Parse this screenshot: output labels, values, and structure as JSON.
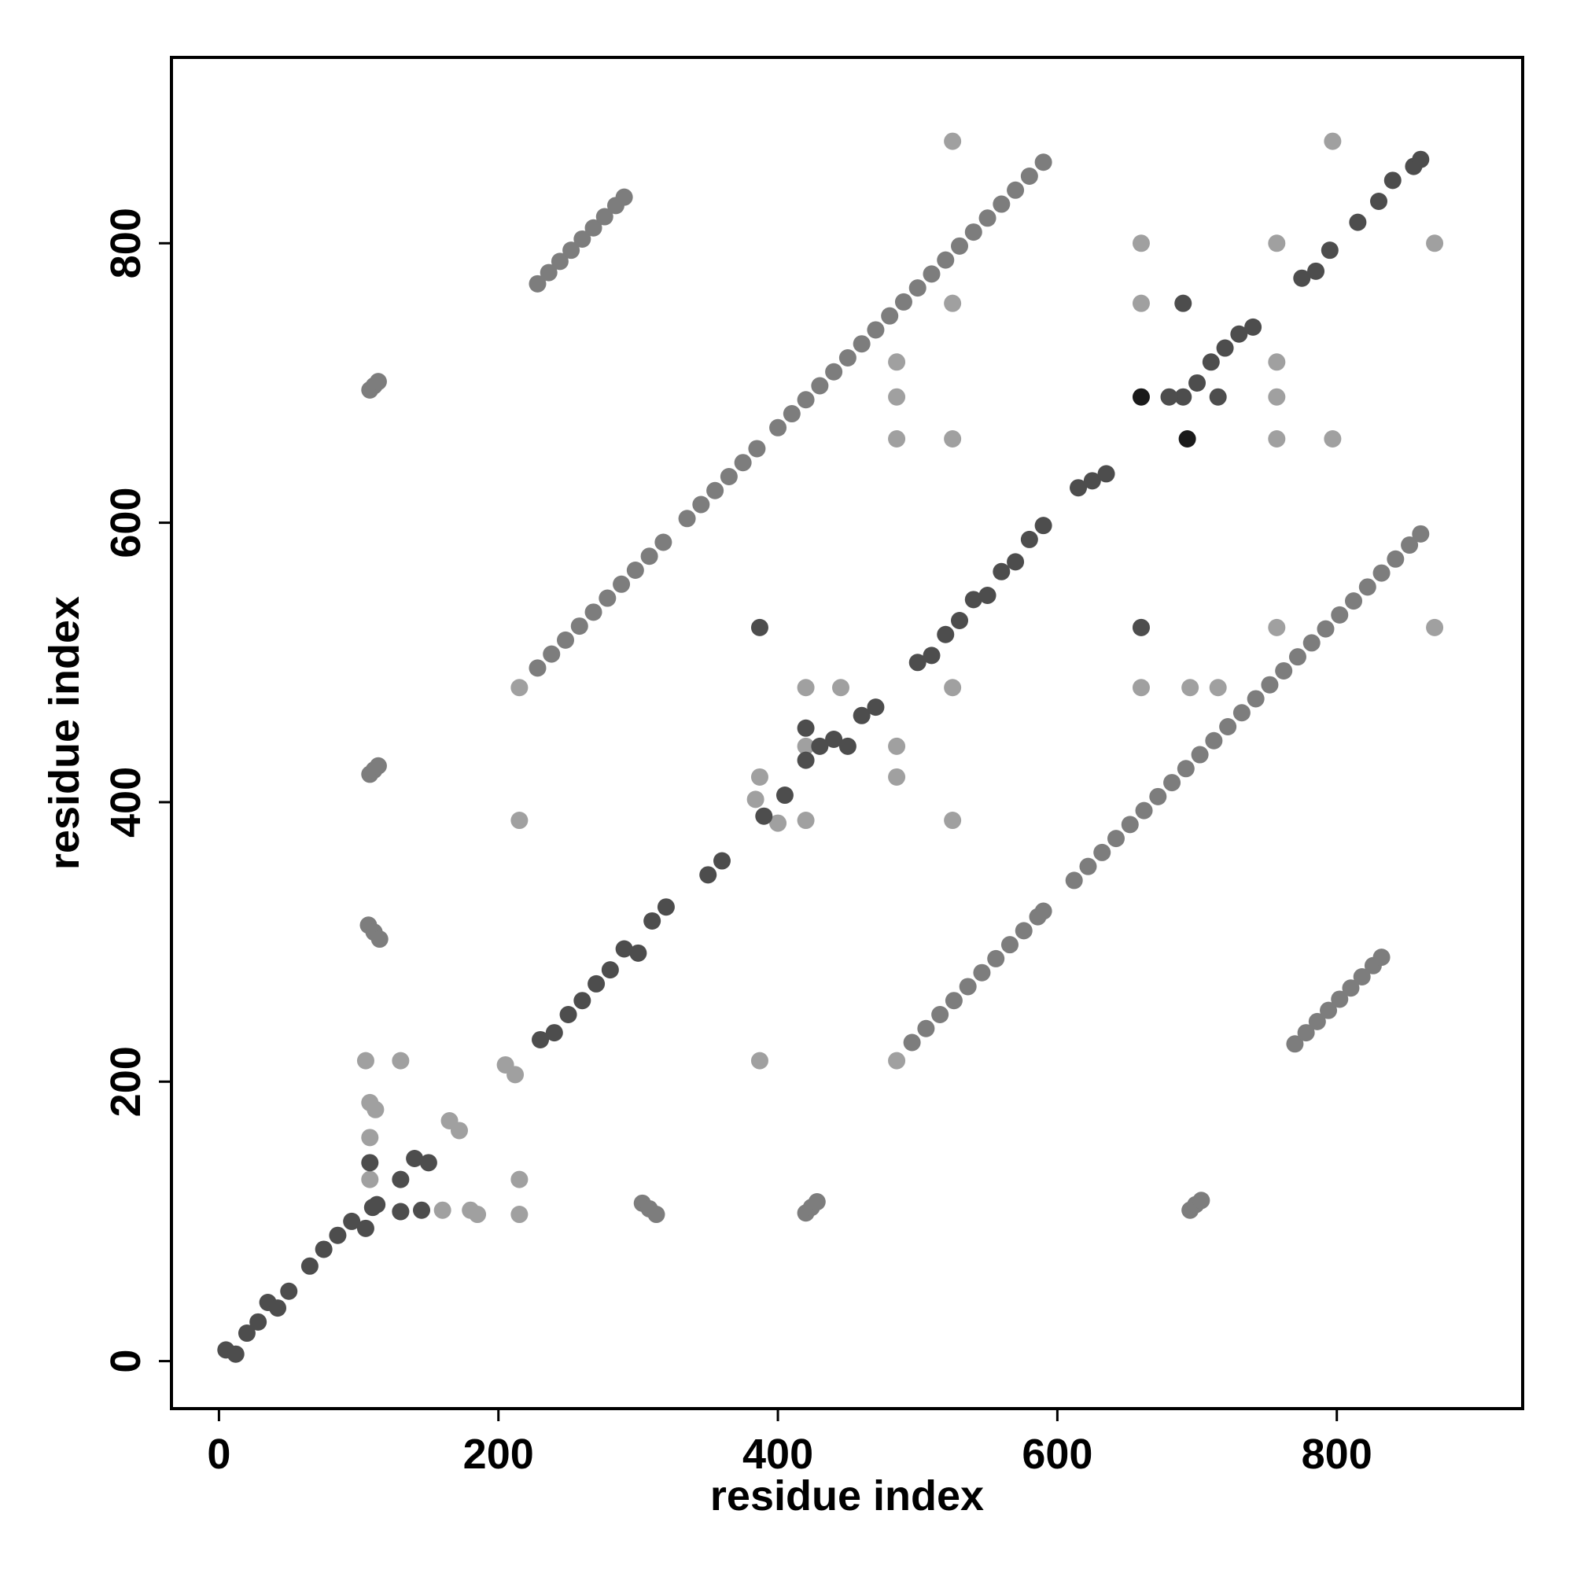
{
  "chart_data": {
    "type": "scatter",
    "x_label": "residue index",
    "y_label": "residue index",
    "xlim": [
      -34,
      933
    ],
    "ylim": [
      -34,
      933
    ],
    "xticks": [
      0,
      200,
      400,
      600,
      800
    ],
    "yticks": [
      0,
      200,
      400,
      600,
      800
    ],
    "series": [
      {
        "color": "#7d7d7d",
        "x": [
          228,
          236,
          244,
          252,
          260,
          268,
          276,
          284,
          290,
          228,
          238,
          248,
          258,
          268,
          278,
          288,
          298,
          308,
          318,
          335,
          345,
          355,
          365,
          375,
          385,
          400,
          410,
          420,
          430,
          440,
          450,
          460,
          470,
          480,
          490,
          500,
          510,
          520,
          530,
          540,
          550,
          560,
          570,
          580,
          590,
          496,
          506,
          516,
          526,
          536,
          546,
          556,
          566,
          576,
          586,
          590,
          612,
          622,
          632,
          642,
          652,
          662,
          672,
          682,
          692,
          702,
          712,
          722,
          732,
          742,
          752,
          762,
          772,
          782,
          792,
          802,
          812,
          822,
          832,
          842,
          852,
          860,
          770,
          778,
          786,
          794,
          802,
          810,
          818,
          826,
          832,
          108,
          111,
          114,
          108,
          111,
          114,
          107,
          111,
          115,
          303,
          308,
          313,
          420,
          424,
          428,
          695,
          699,
          703
        ],
        "values": [
          771,
          779,
          787,
          795,
          803,
          811,
          819,
          827,
          833,
          496,
          506,
          516,
          526,
          536,
          546,
          556,
          566,
          576,
          586,
          603,
          613,
          623,
          633,
          643,
          653,
          668,
          678,
          688,
          698,
          708,
          718,
          728,
          738,
          748,
          758,
          768,
          778,
          788,
          798,
          808,
          818,
          828,
          838,
          848,
          858,
          228,
          238,
          248,
          258,
          268,
          278,
          288,
          298,
          308,
          318,
          322,
          344,
          354,
          364,
          374,
          384,
          394,
          404,
          414,
          424,
          434,
          444,
          454,
          464,
          474,
          484,
          494,
          504,
          514,
          524,
          534,
          544,
          554,
          564,
          574,
          584,
          592,
          227,
          235,
          243,
          251,
          259,
          267,
          275,
          283,
          289,
          695,
          698,
          701,
          420,
          423,
          426,
          312,
          307,
          302,
          113,
          109,
          105,
          106,
          110,
          114,
          108,
          112,
          115
        ]
      },
      {
        "color": "#a0a0a0",
        "x": [
          525,
          797,
          525,
          485,
          485,
          485,
          525,
          797,
          757,
          757,
          757,
          660,
          660,
          757,
          870,
          660,
          757,
          870,
          215,
          420,
          445,
          525,
          660,
          695,
          715,
          485,
          420,
          485,
          387,
          215,
          420,
          525,
          105,
          130,
          387,
          485,
          205,
          212,
          108,
          112,
          108,
          165,
          172,
          130,
          160,
          180,
          185,
          215,
          215,
          108,
          384,
          400
        ],
        "values": [
          873,
          873,
          757,
          715,
          690,
          660,
          660,
          660,
          660,
          690,
          715,
          800,
          757,
          800,
          800,
          525,
          525,
          525,
          482,
          482,
          482,
          482,
          482,
          482,
          482,
          440,
          440,
          418,
          418,
          387,
          387,
          387,
          215,
          215,
          215,
          215,
          212,
          205,
          185,
          180,
          160,
          172,
          165,
          107,
          108,
          108,
          105,
          105,
          130,
          130,
          402,
          385
        ]
      },
      {
        "color": "#4d4d4d",
        "x": [
          5,
          12,
          20,
          28,
          35,
          42,
          50,
          65,
          75,
          85,
          95,
          105,
          110,
          130,
          140,
          150,
          230,
          240,
          250,
          260,
          270,
          280,
          290,
          300,
          310,
          320,
          350,
          360,
          390,
          405,
          420,
          430,
          440,
          450,
          460,
          470,
          500,
          510,
          520,
          530,
          540,
          550,
          560,
          570,
          580,
          590,
          615,
          625,
          635,
          690,
          700,
          710,
          720,
          730,
          740,
          775,
          785,
          795,
          815,
          830,
          840,
          855,
          860,
          387,
          420,
          108,
          113,
          130,
          145,
          660,
          690,
          715,
          680
        ],
        "values": [
          8,
          5,
          20,
          28,
          42,
          38,
          50,
          68,
          80,
          90,
          100,
          95,
          110,
          130,
          145,
          142,
          230,
          235,
          248,
          258,
          270,
          280,
          295,
          292,
          315,
          325,
          348,
          358,
          390,
          405,
          430,
          440,
          445,
          440,
          462,
          468,
          500,
          505,
          520,
          530,
          545,
          548,
          565,
          572,
          588,
          598,
          625,
          630,
          635,
          690,
          700,
          715,
          725,
          735,
          740,
          775,
          780,
          795,
          815,
          830,
          845,
          855,
          860,
          525,
          453,
          142,
          112,
          107,
          108,
          525,
          757,
          690,
          690
        ]
      },
      {
        "color": "#1a1a1a",
        "x": [
          660,
          693
        ],
        "values": [
          690,
          660
        ]
      }
    ]
  }
}
